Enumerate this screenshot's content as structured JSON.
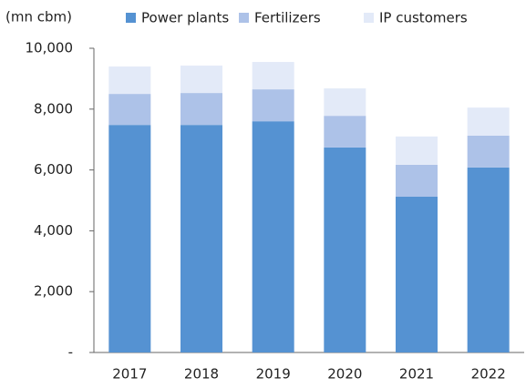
{
  "chart_data": {
    "type": "stacked_bar",
    "y_label": "(mn cbm)",
    "categories": [
      "2017",
      "2018",
      "2019",
      "2020",
      "2021",
      "2022"
    ],
    "series": [
      {
        "name": "Power plants",
        "color": "#5592d2",
        "values": [
          7480,
          7480,
          7600,
          6740,
          5120,
          6080
        ]
      },
      {
        "name": "Fertilizers",
        "color": "#adc2e8",
        "values": [
          1020,
          1050,
          1050,
          1040,
          1050,
          1050
        ]
      },
      {
        "name": "IP customers",
        "color": "#e3eaf8",
        "values": [
          900,
          900,
          900,
          900,
          930,
          920
        ]
      }
    ],
    "ylim": [
      0,
      10000
    ],
    "yticks": [
      {
        "value": 0,
        "label": "-"
      },
      {
        "value": 2000,
        "label": "2,000"
      },
      {
        "value": 4000,
        "label": "4,000"
      },
      {
        "value": 6000,
        "label": "6,000"
      },
      {
        "value": 8000,
        "label": "8,000"
      },
      {
        "value": 10000,
        "label": "10,000"
      }
    ],
    "legend": "top"
  }
}
